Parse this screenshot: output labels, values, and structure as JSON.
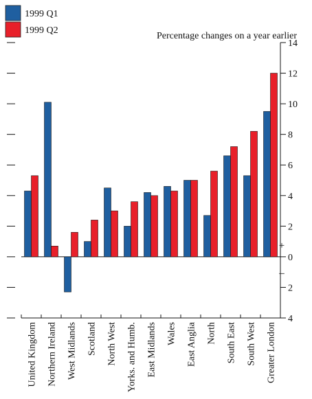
{
  "chart_data": {
    "type": "bar",
    "subtitle": "Percentage changes on a year earlier",
    "categories": [
      "United Kingdom",
      "Northern Ireland",
      "West Midlands",
      "Scotland",
      "North West",
      "Yorks. and Humb.",
      "East Midlands",
      "Wales",
      "East Anglia",
      "North",
      "South East",
      "South West",
      "Greater London"
    ],
    "series": [
      {
        "name": "1999 Q1",
        "color": "#1f5fa0",
        "values": [
          4.3,
          10.1,
          -2.3,
          1.0,
          4.5,
          2.0,
          4.2,
          4.6,
          5.0,
          2.7,
          6.6,
          5.3,
          9.5
        ]
      },
      {
        "name": "1999 Q2",
        "color": "#e8202a",
        "values": [
          5.3,
          0.7,
          1.6,
          2.4,
          3.0,
          3.6,
          4.0,
          4.3,
          5.0,
          5.6,
          7.2,
          8.2,
          12.0
        ]
      }
    ],
    "ylim": [
      -4,
      14
    ],
    "yticks": [
      -4,
      -2,
      0,
      2,
      4,
      6,
      8,
      10,
      12,
      14
    ],
    "ytick_labels": [
      "4",
      "2",
      "0",
      "2",
      "4",
      "6",
      "8",
      "10",
      "12",
      "14"
    ],
    "sign_markers": {
      "positive": "+",
      "negative": "–"
    },
    "legend_position": "top-left",
    "grid": false
  }
}
